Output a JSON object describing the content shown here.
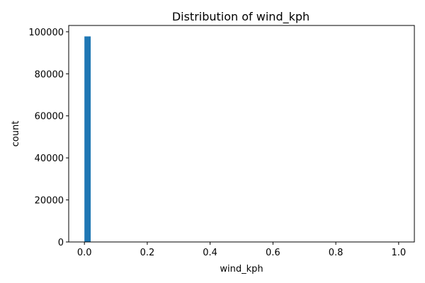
{
  "chart_data": {
    "type": "bar",
    "title": "Distribution of wind_kph",
    "xlabel": "wind_kph",
    "ylabel": "count",
    "xlim": [
      -0.05,
      1.05
    ],
    "ylim": [
      0,
      103000
    ],
    "xticks": [
      0.0,
      0.2,
      0.4,
      0.6,
      0.8,
      1.0
    ],
    "xtick_labels": [
      "0.0",
      "0.2",
      "0.4",
      "0.6",
      "0.8",
      "1.0"
    ],
    "yticks": [
      0,
      20000,
      40000,
      60000,
      80000,
      100000
    ],
    "ytick_labels": [
      "0",
      "20000",
      "40000",
      "60000",
      "80000",
      "100000"
    ],
    "bins": [
      {
        "x0": 0.0,
        "x1": 0.02,
        "count": 97800
      }
    ],
    "bar_color": "#1f77b4",
    "grid": false
  }
}
